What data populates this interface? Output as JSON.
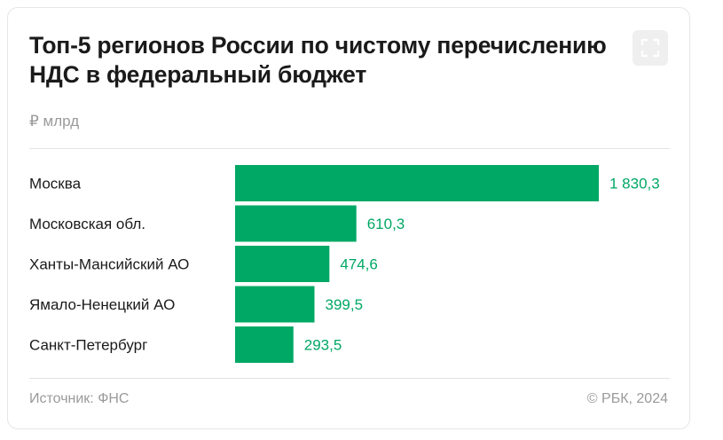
{
  "header": {
    "title": "Топ-5 регионов России по чистому перечислению НДС в федеральный бюджет",
    "unit": "₽ млрд",
    "expand_icon": "expand-icon"
  },
  "footer": {
    "source": "Источник: ФНС",
    "copyright": "© РБК, 2024"
  },
  "colors": {
    "bar": "#00a865",
    "value_label": "#00a865",
    "category_label": "#1a1a1a"
  },
  "chart_data": {
    "type": "bar",
    "orientation": "horizontal",
    "categories": [
      "Москва",
      "Московская обл.",
      "Ханты-Мансийский АО",
      "Ямало-Ненецкий АО",
      "Санкт-Петербург"
    ],
    "values": [
      1830.3,
      610.3,
      474.6,
      399.5,
      293.5
    ],
    "value_labels": [
      "1 830,3",
      "610,3",
      "474,6",
      "399,5",
      "293,5"
    ],
    "title": "Топ-5 регионов России по чистому перечислению НДС в федеральный бюджет",
    "xlabel": "",
    "ylabel": "₽ млрд",
    "xlim": [
      0,
      1830.3
    ],
    "grid": false,
    "legend": "none"
  }
}
